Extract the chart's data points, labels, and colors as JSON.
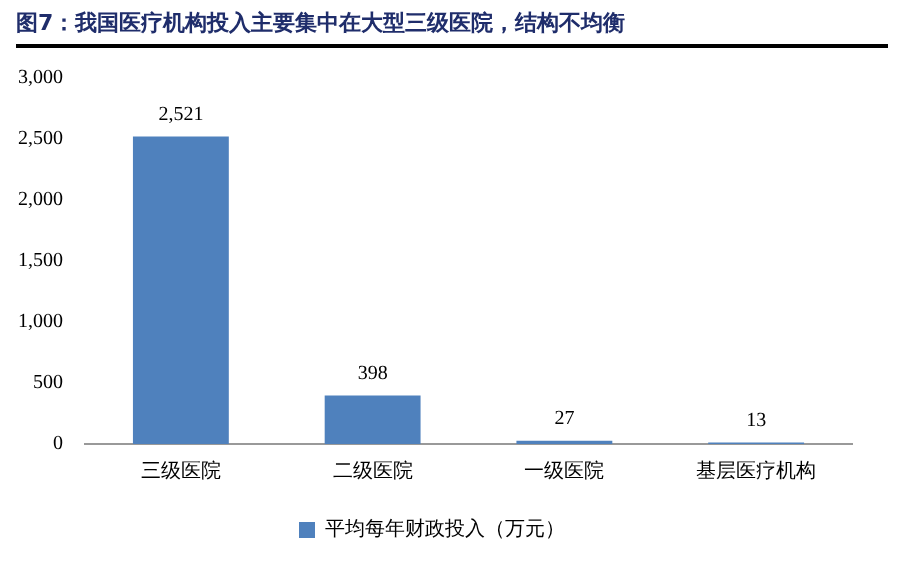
{
  "chart_data": {
    "type": "bar",
    "title": "图7：我国医疗机构投入主要集中在大型三级医院，结构不均衡",
    "categories": [
      "三级医院",
      "二级医院",
      "一级医院",
      "基层医疗机构"
    ],
    "series": [
      {
        "name": "平均每年财政投入（万元）",
        "color": "#4f81bd",
        "values": [
          2521,
          398,
          27,
          13
        ],
        "value_labels": [
          "2,521",
          "398",
          "27",
          "13"
        ]
      }
    ],
    "ylim": [
      0,
      3000
    ],
    "yticks": [
      0,
      500,
      {
        "value": 1000,
        "label": "1,000"
      },
      {
        "value": 1500,
        "label": "1,500"
      },
      {
        "value": 2000,
        "label": "2,000"
      },
      {
        "value": 2500,
        "label": "2,500"
      },
      {
        "value": 3000,
        "label": "3,000"
      }
    ],
    "grid": false,
    "legend": "bottom"
  }
}
